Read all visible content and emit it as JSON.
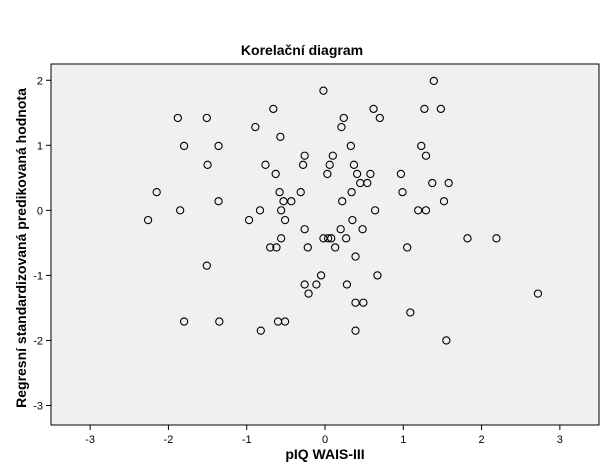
{
  "chart_data": {
    "type": "scatter",
    "title": "Korelační diagram",
    "xlabel": "pIQ WAIS-III",
    "ylabel": "Regresní standardizovaná predikovaná hodnota",
    "xlim": [
      -3.5,
      3.5
    ],
    "ylim": [
      -3.3,
      2.25
    ],
    "xticks": [
      -3,
      -2,
      -1,
      0,
      1,
      2,
      3
    ],
    "xtick_labels": [
      "-3",
      "-2",
      "-1",
      "0",
      "1",
      "2",
      "3"
    ],
    "yticks": [
      -3,
      -2,
      -1,
      0,
      1,
      2
    ],
    "ytick_labels": [
      "-3",
      "-2",
      "-1",
      "0",
      "1",
      "2"
    ],
    "grid": false,
    "legend": "none",
    "plot_background": "#f0f0f0",
    "marker_color": "#000000",
    "points": [
      {
        "x": -2.26,
        "y": -0.15
      },
      {
        "x": -2.15,
        "y": 0.28
      },
      {
        "x": -1.88,
        "y": 1.42
      },
      {
        "x": -1.85,
        "y": 0.0
      },
      {
        "x": -1.8,
        "y": 0.99
      },
      {
        "x": -1.8,
        "y": -1.71
      },
      {
        "x": -1.51,
        "y": 1.42
      },
      {
        "x": -1.5,
        "y": 0.7
      },
      {
        "x": -1.51,
        "y": -0.85
      },
      {
        "x": -1.36,
        "y": 0.99
      },
      {
        "x": -1.36,
        "y": 0.14
      },
      {
        "x": -1.35,
        "y": -1.71
      },
      {
        "x": -0.97,
        "y": -0.15
      },
      {
        "x": -0.89,
        "y": 1.28
      },
      {
        "x": -0.83,
        "y": 0.0
      },
      {
        "x": -0.82,
        "y": -1.85
      },
      {
        "x": -0.76,
        "y": 0.7
      },
      {
        "x": -0.7,
        "y": -0.57
      },
      {
        "x": -0.66,
        "y": 1.56
      },
      {
        "x": -0.63,
        "y": 0.56
      },
      {
        "x": -0.62,
        "y": -0.57
      },
      {
        "x": -0.6,
        "y": -1.71
      },
      {
        "x": -0.58,
        "y": 0.28
      },
      {
        "x": -0.57,
        "y": 1.13
      },
      {
        "x": -0.56,
        "y": 0.0
      },
      {
        "x": -0.56,
        "y": -0.43
      },
      {
        "x": -0.53,
        "y": 0.14
      },
      {
        "x": -0.51,
        "y": -0.15
      },
      {
        "x": -0.51,
        "y": -1.71
      },
      {
        "x": -0.43,
        "y": 0.14
      },
      {
        "x": -0.31,
        "y": 0.28
      },
      {
        "x": -0.28,
        "y": 0.7
      },
      {
        "x": -0.26,
        "y": 0.84
      },
      {
        "x": -0.26,
        "y": -0.29
      },
      {
        "x": -0.26,
        "y": -1.14
      },
      {
        "x": -0.22,
        "y": -0.57
      },
      {
        "x": -0.21,
        "y": -1.28
      },
      {
        "x": -0.11,
        "y": -1.14
      },
      {
        "x": -0.05,
        "y": -1.0
      },
      {
        "x": -0.02,
        "y": 1.84
      },
      {
        "x": -0.02,
        "y": -0.43
      },
      {
        "x": 0.03,
        "y": 0.56
      },
      {
        "x": 0.04,
        "y": -0.43
      },
      {
        "x": 0.06,
        "y": 0.7
      },
      {
        "x": 0.08,
        "y": -0.43
      },
      {
        "x": 0.1,
        "y": 0.84
      },
      {
        "x": 0.13,
        "y": -0.57
      },
      {
        "x": 0.2,
        "y": -0.29
      },
      {
        "x": 0.21,
        "y": 1.28
      },
      {
        "x": 0.22,
        "y": 0.14
      },
      {
        "x": 0.24,
        "y": 1.42
      },
      {
        "x": 0.27,
        "y": -0.43
      },
      {
        "x": 0.28,
        "y": -1.14
      },
      {
        "x": 0.33,
        "y": 0.99
      },
      {
        "x": 0.34,
        "y": 0.28
      },
      {
        "x": 0.35,
        "y": -0.15
      },
      {
        "x": 0.37,
        "y": 0.7
      },
      {
        "x": 0.39,
        "y": -0.71
      },
      {
        "x": 0.39,
        "y": -1.42
      },
      {
        "x": 0.39,
        "y": -1.85
      },
      {
        "x": 0.41,
        "y": 0.56
      },
      {
        "x": 0.45,
        "y": 0.42
      },
      {
        "x": 0.48,
        "y": -0.29
      },
      {
        "x": 0.49,
        "y": -1.42
      },
      {
        "x": 0.54,
        "y": 0.42
      },
      {
        "x": 0.58,
        "y": 0.56
      },
      {
        "x": 0.62,
        "y": 1.56
      },
      {
        "x": 0.64,
        "y": 0.0
      },
      {
        "x": 0.67,
        "y": -1.0
      },
      {
        "x": 0.7,
        "y": 1.42
      },
      {
        "x": 0.97,
        "y": 0.56
      },
      {
        "x": 0.99,
        "y": 0.28
      },
      {
        "x": 1.05,
        "y": -0.57
      },
      {
        "x": 1.09,
        "y": -1.57
      },
      {
        "x": 1.19,
        "y": 0.0
      },
      {
        "x": 1.23,
        "y": 0.99
      },
      {
        "x": 1.27,
        "y": 1.56
      },
      {
        "x": 1.29,
        "y": 0.84
      },
      {
        "x": 1.29,
        "y": 0.0
      },
      {
        "x": 1.37,
        "y": 0.42
      },
      {
        "x": 1.39,
        "y": 1.99
      },
      {
        "x": 1.48,
        "y": 1.56
      },
      {
        "x": 1.52,
        "y": 0.14
      },
      {
        "x": 1.55,
        "y": -2.0
      },
      {
        "x": 1.58,
        "y": 0.42
      },
      {
        "x": 1.82,
        "y": -0.43
      },
      {
        "x": 2.19,
        "y": -0.43
      },
      {
        "x": 2.72,
        "y": -1.28
      }
    ]
  }
}
